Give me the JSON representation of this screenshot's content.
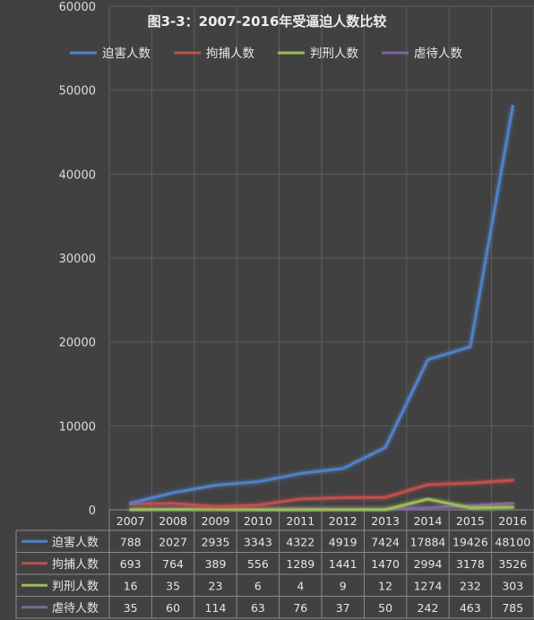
{
  "chart_data": {
    "type": "line",
    "title": "图3-3：2007-2016年受逼迫人数比较",
    "categories": [
      "2007",
      "2008",
      "2009",
      "2010",
      "2011",
      "2012",
      "2013",
      "2014",
      "2015",
      "2016"
    ],
    "ylim": [
      0,
      60000
    ],
    "yticks": [
      "0",
      "10000",
      "20000",
      "30000",
      "40000",
      "50000",
      "60000"
    ],
    "legend_position": "top",
    "grid": true,
    "series": [
      {
        "name": "迫害人数",
        "color": "#4f81c7",
        "values": [
          788,
          2027,
          2935,
          3343,
          4322,
          4919,
          7424,
          17884,
          19426,
          48100
        ]
      },
      {
        "name": "拘捕人数",
        "color": "#c0504d",
        "values": [
          693,
          764,
          389,
          556,
          1289,
          1441,
          1470,
          2994,
          3178,
          3526
        ]
      },
      {
        "name": "判刑人数",
        "color": "#9bbb59",
        "values": [
          16,
          35,
          23,
          6,
          4,
          9,
          12,
          1274,
          232,
          303
        ]
      },
      {
        "name": "虐待人数",
        "color": "#8064a2",
        "values": [
          35,
          60,
          114,
          63,
          76,
          37,
          50,
          242,
          463,
          785
        ]
      }
    ]
  }
}
